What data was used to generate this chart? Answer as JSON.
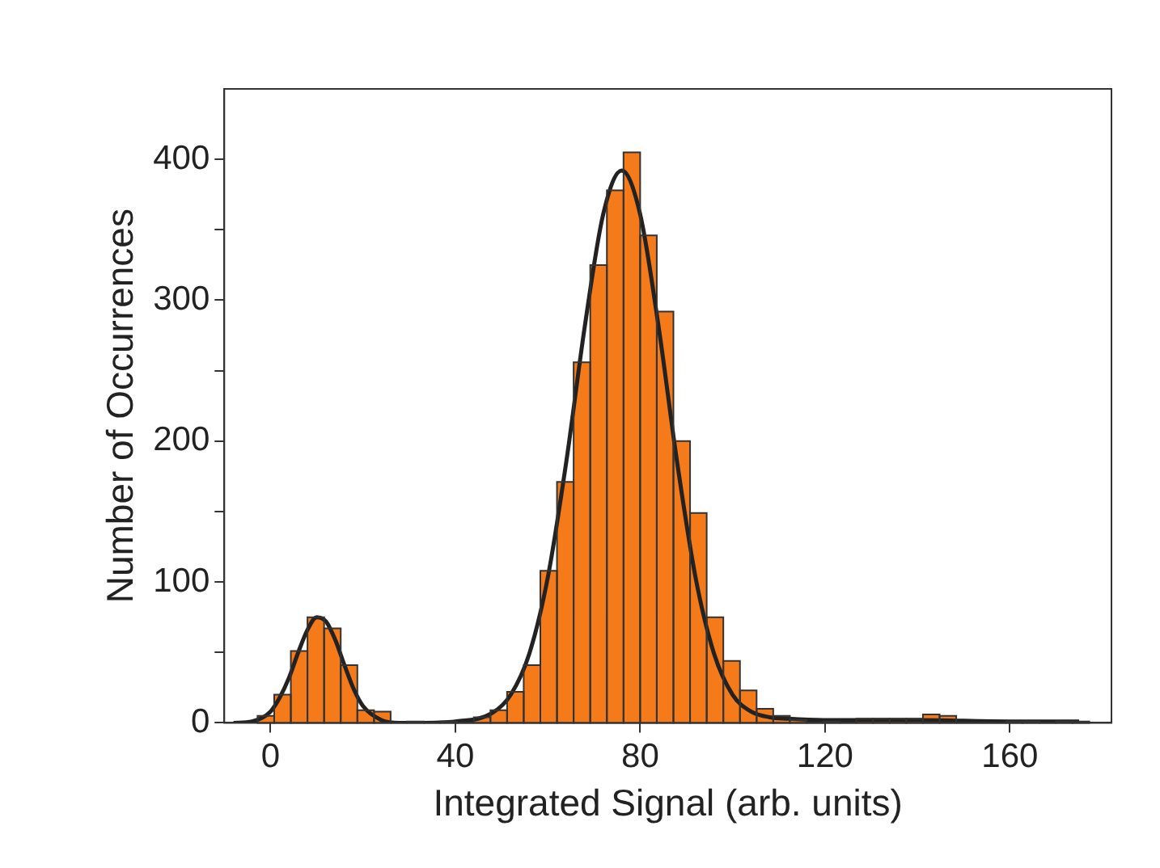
{
  "chart_data": {
    "type": "histogram",
    "xlabel": "Integrated Signal (arb. units)",
    "ylabel": "Number of Occurrences",
    "xlim": [
      -10,
      182
    ],
    "ylim": [
      0,
      450
    ],
    "xticks": [
      0,
      40,
      80,
      120,
      160
    ],
    "yticks": [
      0,
      {
        "value": 50,
        "label": null
      },
      100,
      {
        "value": 150,
        "label": null
      },
      200,
      {
        "value": 250,
        "label": null
      },
      300,
      {
        "value": 350,
        "label": null
      },
      400
    ],
    "grid": false,
    "legend": false,
    "series": [
      {
        "type": "histogram",
        "color": "#f47a1a",
        "bins": [
          -2.8,
          0.8,
          4.4,
          8,
          11.6,
          15.2,
          18.8,
          22.4,
          26,
          29.6,
          33.2,
          36.8,
          40.4,
          44,
          47.6,
          51.2,
          54.8,
          58.4,
          62,
          65.6,
          69.2,
          72.8,
          76.4,
          80,
          83.6,
          87.2,
          90.8,
          94.4,
          98,
          101.6,
          105.2,
          108.8,
          112.4,
          116,
          119.6,
          123.2,
          126.8,
          130.4,
          134,
          137.6,
          141.2,
          144.8,
          148.4,
          152,
          155.6,
          159.2,
          162.8,
          166.4,
          170,
          173.6,
          177.2
        ],
        "values": [
          5,
          20,
          51,
          75,
          67,
          41,
          9,
          8,
          null,
          1,
          null,
          1,
          null,
          4,
          9,
          22,
          41,
          108,
          171,
          256,
          325,
          378,
          405,
          346,
          292,
          200,
          149,
          75,
          44,
          23,
          10,
          5,
          2,
          null,
          1,
          null,
          3,
          3,
          3,
          3,
          6,
          5,
          null,
          null,
          null,
          1,
          1,
          null,
          1,
          1
        ]
      },
      {
        "type": "line",
        "color": "#222222",
        "marker": "none",
        "x": [
          -8,
          -4,
          0,
          2,
          4,
          6,
          8,
          10,
          12,
          14,
          16,
          18,
          20,
          24,
          28,
          32,
          40,
          48,
          52,
          56,
          60,
          64,
          68,
          72,
          76,
          80,
          84,
          88,
          92,
          96,
          100,
          104,
          108,
          112,
          120,
          140,
          160,
          175
        ],
        "values": [
          0,
          1,
          8,
          18,
          32,
          50,
          66,
          75,
          72,
          59,
          41,
          24,
          12,
          2,
          0,
          0,
          1,
          7,
          20,
          49,
          103,
          185,
          281,
          361,
          392,
          361,
          281,
          185,
          103,
          49,
          20,
          8,
          4,
          3,
          2,
          2,
          1,
          1
        ]
      }
    ]
  }
}
